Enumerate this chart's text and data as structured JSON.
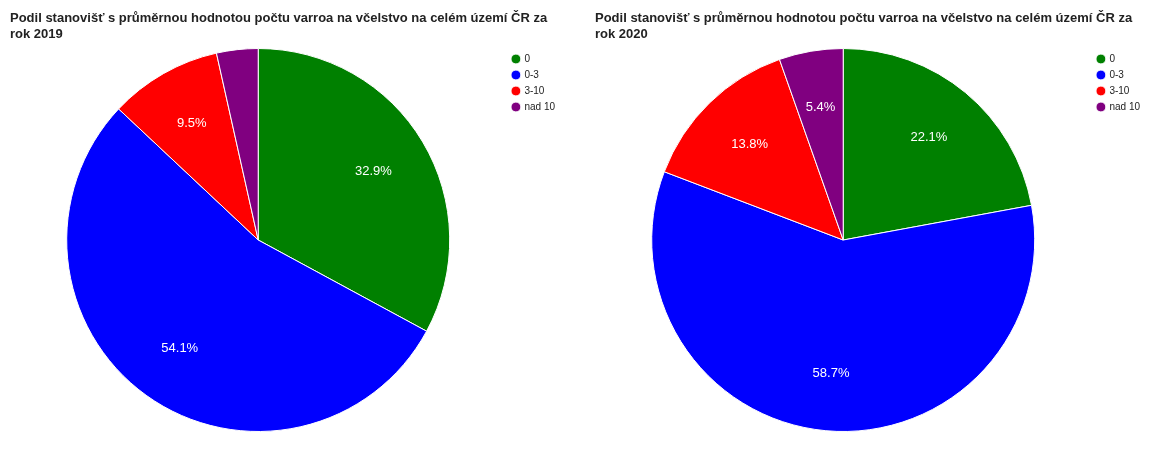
{
  "chart_data": [
    {
      "type": "pie",
      "title": "Podil stanovišť s průměrnou hodnotou počtu varroa na včelstvo na celém území ČR za rok 2019",
      "categories": [
        "0",
        "0-3",
        "3-10",
        "nad 10"
      ],
      "values": [
        32.9,
        54.1,
        9.5,
        3.5
      ],
      "colors": [
        "#008000",
        "#0000ff",
        "#ff0000",
        "#800080"
      ],
      "value_labels": [
        "32.9%",
        "54.1%",
        "9.5%",
        null
      ],
      "legend": "top right"
    },
    {
      "type": "pie",
      "title": "Podil stanovišť s průměrnou hodnotou počtu varroa na včelstvo na celém území ČR za rok 2020",
      "categories": [
        "0",
        "0-3",
        "3-10",
        "nad 10"
      ],
      "values": [
        22.1,
        58.7,
        13.8,
        5.4
      ],
      "colors": [
        "#008000",
        "#0000ff",
        "#ff0000",
        "#800080"
      ],
      "value_labels": [
        "22.1%",
        "58.7%",
        "13.8%",
        "5.4%"
      ],
      "legend": "top right"
    }
  ]
}
